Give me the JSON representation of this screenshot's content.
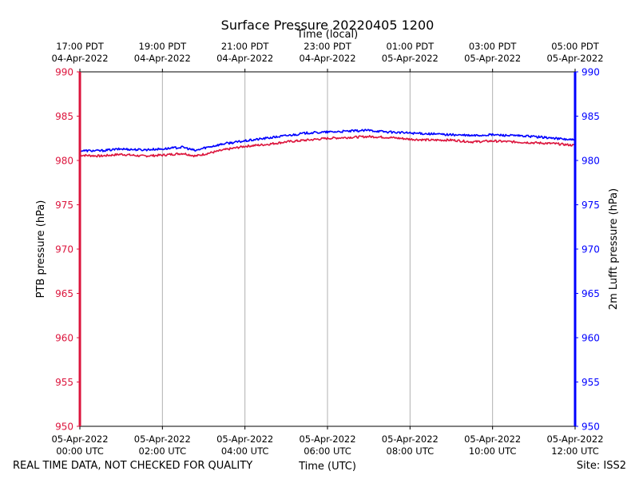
{
  "chart_data": {
    "type": "line",
    "title": "Surface Pressure 20220405 1200",
    "top_xlabel": "Time (local)",
    "xlabel": "Time (UTC)",
    "ylabel_left": "PTB pressure (hPa)",
    "ylabel_right": "2m Lufft pressure (hPa)",
    "ylim": [
      950,
      990
    ],
    "yticks": [
      950,
      955,
      960,
      965,
      970,
      975,
      980,
      985,
      990
    ],
    "xlim_hours": [
      0,
      12
    ],
    "x_ticks": [
      {
        "hour": 0,
        "utc": [
          "05-Apr-2022",
          "00:00 UTC"
        ],
        "local": [
          "17:00 PDT",
          "04-Apr-2022"
        ]
      },
      {
        "hour": 2,
        "utc": [
          "05-Apr-2022",
          "02:00 UTC"
        ],
        "local": [
          "19:00 PDT",
          "04-Apr-2022"
        ]
      },
      {
        "hour": 4,
        "utc": [
          "05-Apr-2022",
          "04:00 UTC"
        ],
        "local": [
          "21:00 PDT",
          "04-Apr-2022"
        ]
      },
      {
        "hour": 6,
        "utc": [
          "05-Apr-2022",
          "06:00 UTC"
        ],
        "local": [
          "23:00 PDT",
          "04-Apr-2022"
        ]
      },
      {
        "hour": 8,
        "utc": [
          "05-Apr-2022",
          "08:00 UTC"
        ],
        "local": [
          "01:00 PDT",
          "05-Apr-2022"
        ]
      },
      {
        "hour": 10,
        "utc": [
          "05-Apr-2022",
          "10:00 UTC"
        ],
        "local": [
          "03:00 PDT",
          "05-Apr-2022"
        ]
      },
      {
        "hour": 12,
        "utc": [
          "05-Apr-2022",
          "12:00 UTC"
        ],
        "local": [
          "05:00 PDT",
          "05-Apr-2022"
        ]
      }
    ],
    "grid": "vertical",
    "series": [
      {
        "name": "PTB pressure",
        "axis": "left",
        "color": "#dc143c",
        "x": [
          0,
          0.5,
          1,
          1.5,
          2,
          2.5,
          2.8,
          3,
          3.5,
          4,
          4.5,
          5,
          5.5,
          6,
          6.5,
          7,
          7.5,
          8,
          8.5,
          9,
          9.5,
          10,
          10.5,
          11,
          11.5,
          12
        ],
        "values": [
          980.6,
          980.5,
          980.7,
          980.5,
          980.6,
          980.8,
          980.5,
          980.7,
          981.2,
          981.6,
          981.8,
          982.1,
          982.3,
          982.5,
          982.6,
          982.7,
          982.6,
          982.4,
          982.3,
          982.3,
          982.1,
          982.2,
          982.1,
          982.0,
          981.9,
          981.7
        ]
      },
      {
        "name": "2m Lufft pressure",
        "axis": "right",
        "color": "#0000ff",
        "x": [
          0,
          0.5,
          1,
          1.5,
          2,
          2.5,
          2.8,
          3,
          3.5,
          4,
          4.5,
          5,
          5.5,
          6,
          6.5,
          7,
          7.5,
          8,
          8.5,
          9,
          9.5,
          10,
          10.5,
          11,
          11.5,
          12
        ],
        "values": [
          981.1,
          981.1,
          981.3,
          981.2,
          981.3,
          981.5,
          981.1,
          981.4,
          981.9,
          982.2,
          982.5,
          982.8,
          983.1,
          983.2,
          983.3,
          983.4,
          983.2,
          983.1,
          983.0,
          982.9,
          982.8,
          982.9,
          982.8,
          982.7,
          982.5,
          982.3
        ]
      }
    ]
  },
  "footer": {
    "left": "REAL TIME DATA, NOT CHECKED FOR QUALITY",
    "center": "Time (UTC)",
    "right": "Site: ISS2"
  }
}
